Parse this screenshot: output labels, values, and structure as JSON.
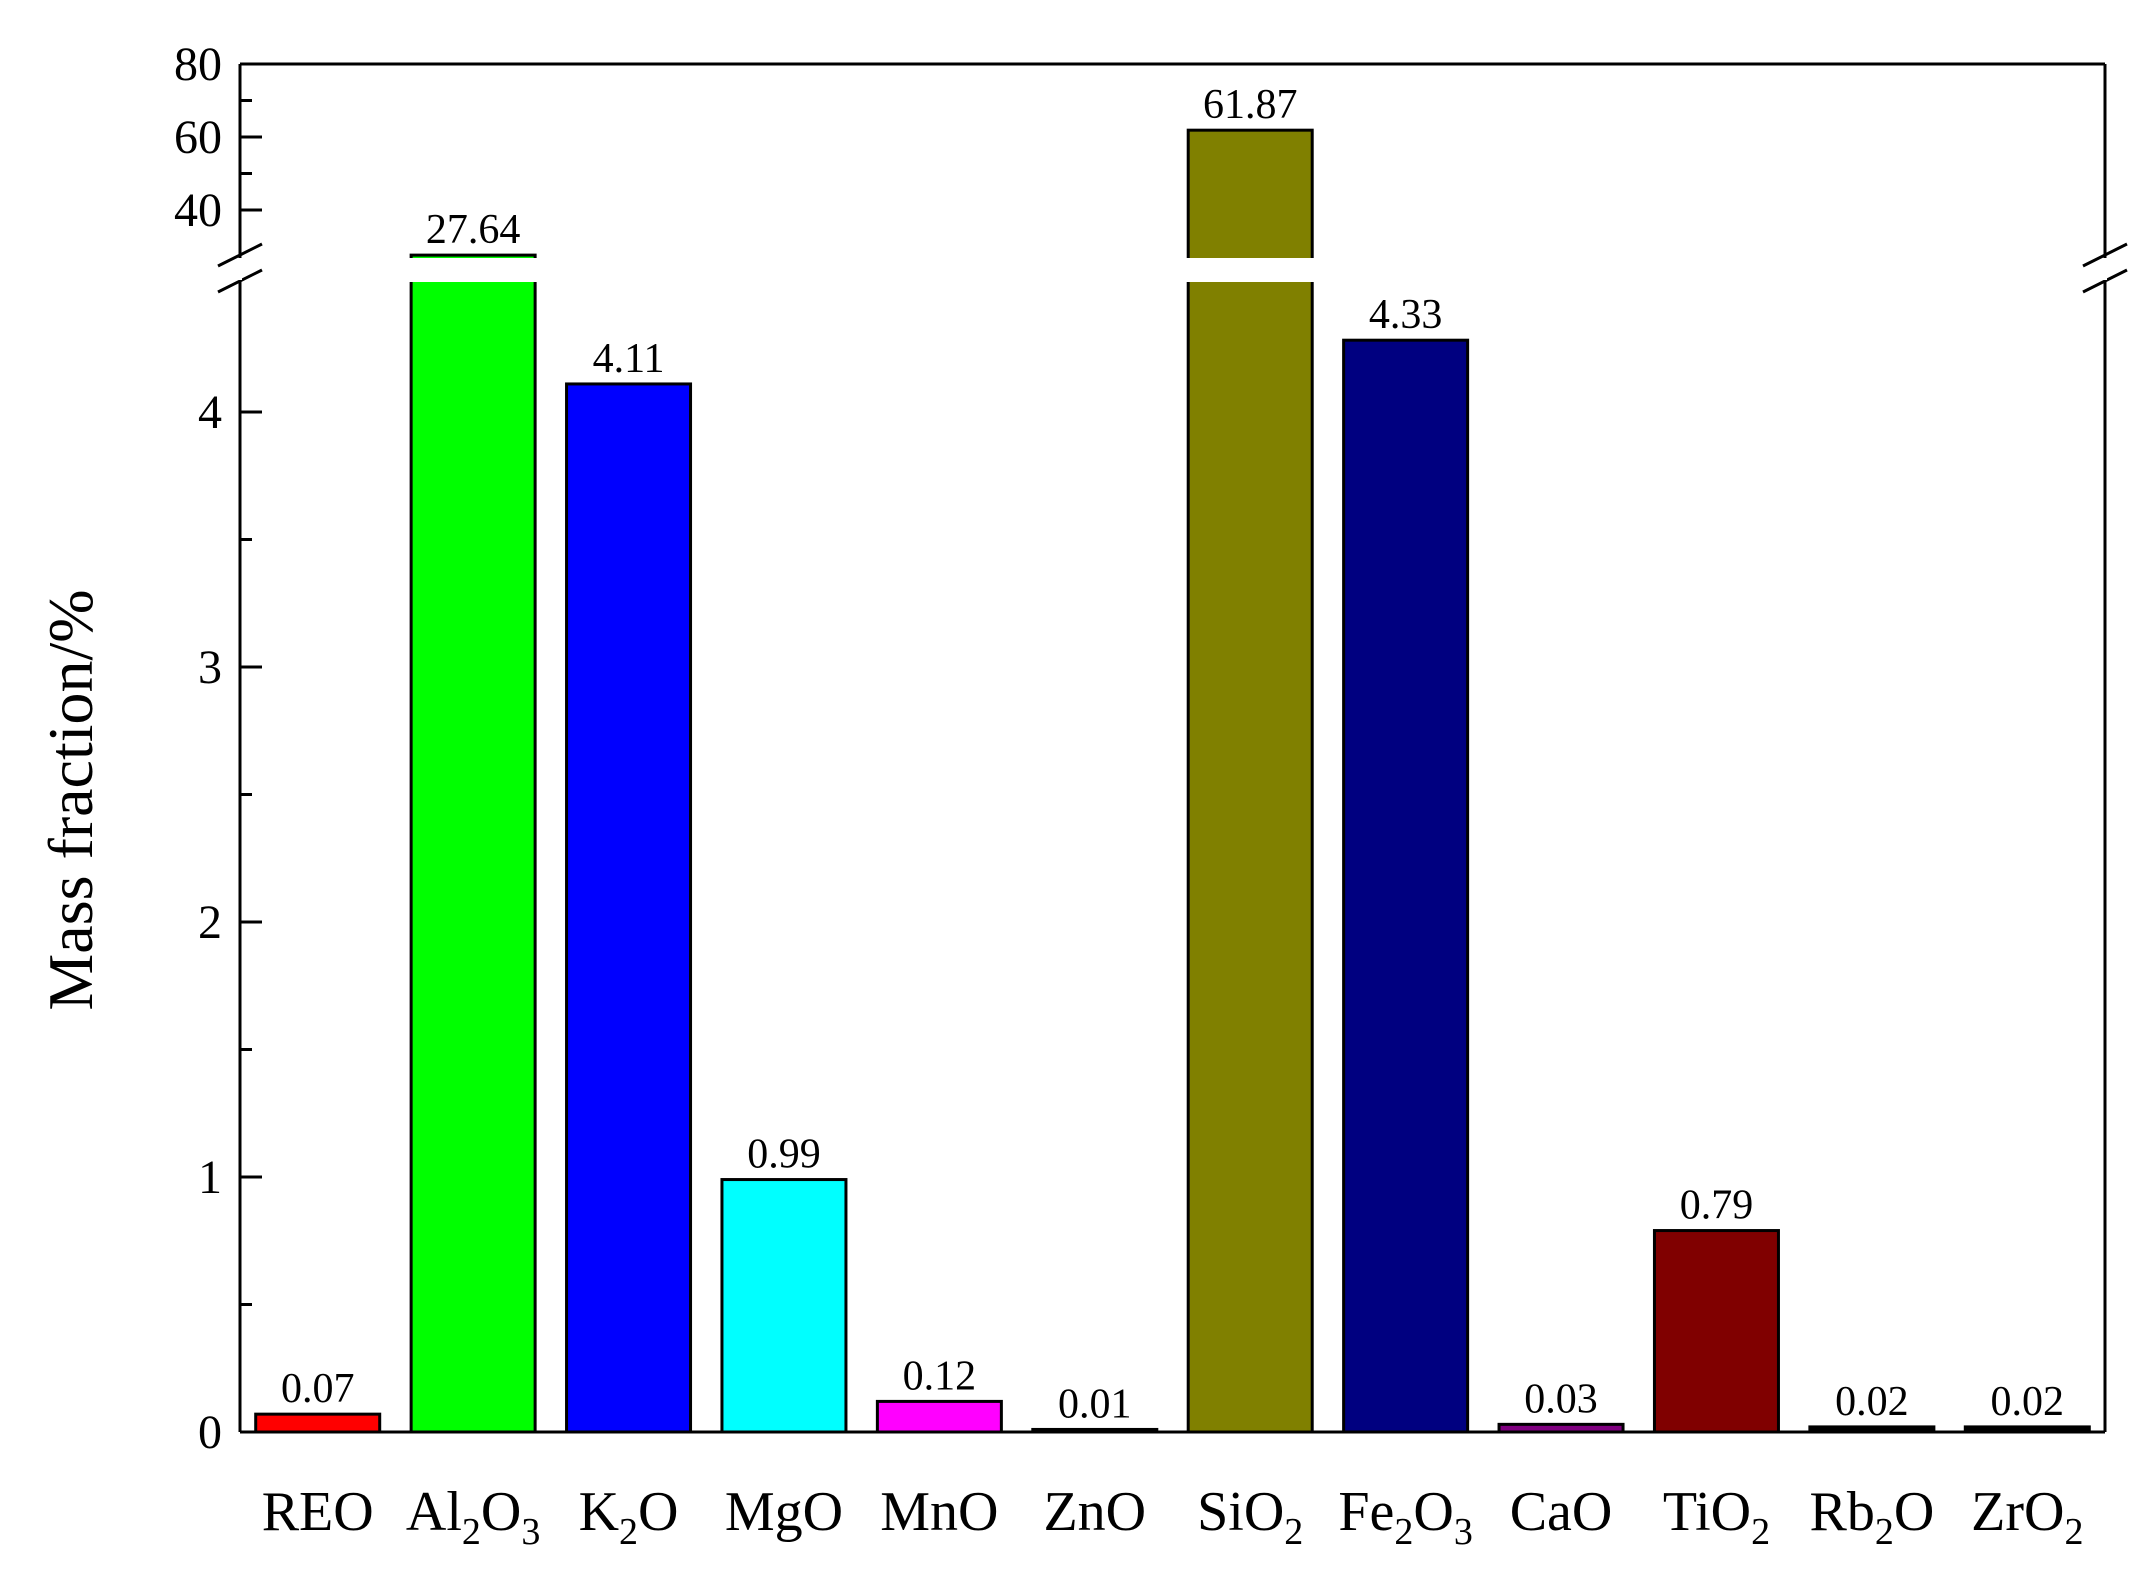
{
  "chart_data": {
    "type": "bar",
    "title": "",
    "xlabel": "",
    "ylabel": "Mass fraction/%",
    "y_axis_break": true,
    "ylim_lower": [
      0,
      4.3
    ],
    "ylim_upper": [
      20,
      80
    ],
    "yticks_lower": [
      "0",
      "1",
      "2",
      "3",
      "4"
    ],
    "yticks_upper": [
      "40",
      "60",
      "80"
    ],
    "grid": false,
    "categories": [
      {
        "base": "REO",
        "sub": ""
      },
      {
        "base": "Al",
        "sub": "2",
        "base2": "O",
        "sub2": "3"
      },
      {
        "base": "K",
        "sub": "2",
        "base2": "O",
        "sub2": ""
      },
      {
        "base": "MgO",
        "sub": ""
      },
      {
        "base": "MnO",
        "sub": ""
      },
      {
        "base": "ZnO",
        "sub": ""
      },
      {
        "base": "SiO",
        "sub": "2"
      },
      {
        "base": "Fe",
        "sub": "2",
        "base2": "O",
        "sub2": "3"
      },
      {
        "base": "CaO",
        "sub": ""
      },
      {
        "base": "TiO",
        "sub": "2"
      },
      {
        "base": "Rb",
        "sub": "2",
        "base2": "O",
        "sub2": ""
      },
      {
        "base": "ZrO",
        "sub": "2"
      }
    ],
    "values": [
      0.07,
      27.64,
      4.11,
      0.99,
      0.12,
      0.01,
      61.87,
      4.33,
      0.03,
      0.79,
      0.02,
      0.02
    ],
    "value_labels": [
      "0.07",
      "27.64",
      "4.11",
      "0.99",
      "0.12",
      "0.01",
      "61.87",
      "4.33",
      "0.03",
      "0.79",
      "0.02",
      "0.02"
    ],
    "colors": [
      "#ff0000",
      "#00ff00",
      "#0000ff",
      "#00ffff",
      "#ff00ff",
      "#000000",
      "#808000",
      "#000080",
      "#800080",
      "#800000",
      "#000000",
      "#000000"
    ]
  }
}
